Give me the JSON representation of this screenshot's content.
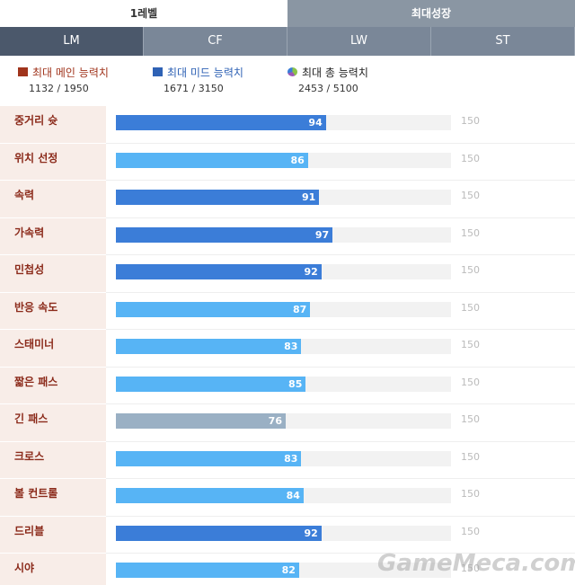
{
  "level_tabs": [
    {
      "label": "1레벨",
      "active": true
    },
    {
      "label": "최대성장",
      "active": false
    }
  ],
  "position_tabs": [
    {
      "label": "LM",
      "active": true
    },
    {
      "label": "CF",
      "active": false
    },
    {
      "label": "LW",
      "active": false
    },
    {
      "label": "ST",
      "active": false
    }
  ],
  "summary": [
    {
      "label": "최대 메인 능력치",
      "value": "1132 / 1950",
      "color": "#a0341c"
    },
    {
      "label": "최대 미드 능력치",
      "value": "1671 / 3150",
      "color": "#2f62b5"
    },
    {
      "label": "최대 총 능력치",
      "value": "2453 / 5100",
      "color": "#222222"
    }
  ],
  "stats": [
    {
      "label": "중거리 슛",
      "value": 94,
      "max": 150,
      "color": "#3b7dd8"
    },
    {
      "label": "위치 선정",
      "value": 86,
      "max": 150,
      "color": "#57b4f5"
    },
    {
      "label": "속력",
      "value": 91,
      "max": 150,
      "color": "#3b7dd8"
    },
    {
      "label": "가속력",
      "value": 97,
      "max": 150,
      "color": "#3b7dd8"
    },
    {
      "label": "민첩성",
      "value": 92,
      "max": 150,
      "color": "#3b7dd8"
    },
    {
      "label": "반응 속도",
      "value": 87,
      "max": 150,
      "color": "#57b4f5"
    },
    {
      "label": "스태미너",
      "value": 83,
      "max": 150,
      "color": "#57b4f5"
    },
    {
      "label": "짧은 패스",
      "value": 85,
      "max": 150,
      "color": "#57b4f5"
    },
    {
      "label": "긴 패스",
      "value": 76,
      "max": 150,
      "color": "#9ab0c4"
    },
    {
      "label": "크로스",
      "value": 83,
      "max": 150,
      "color": "#57b4f5"
    },
    {
      "label": "볼 컨트롤",
      "value": 84,
      "max": 150,
      "color": "#57b4f5"
    },
    {
      "label": "드리블",
      "value": 92,
      "max": 150,
      "color": "#3b7dd8"
    },
    {
      "label": "시야",
      "value": 82,
      "max": 150,
      "color": "#57b4f5"
    }
  ],
  "watermark": "GameMeca.com"
}
